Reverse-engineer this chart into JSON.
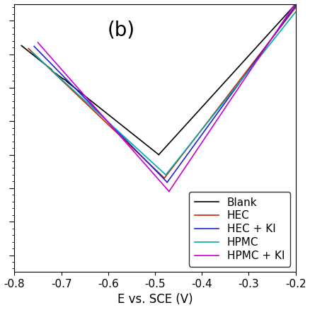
{
  "title": "(b)",
  "xlabel": "E vs. SCE (V)",
  "xlim": [
    -0.8,
    -0.2
  ],
  "xticks": [
    -0.8,
    -0.7,
    -0.6,
    -0.5,
    -0.4,
    -0.3,
    -0.2
  ],
  "colors": {
    "Blank": "#000000",
    "HEC": "#cc2200",
    "HEC + KI": "#2222cc",
    "HPMC": "#00aaaa",
    "HPMC + KI": "#cc00cc"
  },
  "title_fontsize": 20,
  "label_fontsize": 12,
  "tick_fontsize": 11,
  "legend_fontsize": 11,
  "curves": {
    "Blank": {
      "Ecorr": -0.492,
      "icorr": 1e-06,
      "ba": 0.065,
      "bc": 0.09,
      "E_cat": -0.785,
      "E_an": -0.2,
      "noise": true
    },
    "HEC": {
      "Ecorr": -0.48,
      "icorr": 2e-07,
      "ba": 0.055,
      "bc": 0.075,
      "E_cat": -0.77,
      "E_an": -0.2,
      "noise": false
    },
    "HEC + KI": {
      "Ecorr": -0.474,
      "icorr": 1.5e-07,
      "ba": 0.052,
      "bc": 0.07,
      "E_cat": -0.758,
      "E_an": -0.2,
      "noise": false
    },
    "HPMC": {
      "Ecorr": -0.477,
      "icorr": 2.5e-07,
      "ba": 0.057,
      "bc": 0.078,
      "E_cat": -0.763,
      "E_an": -0.2,
      "noise": false
    },
    "HPMC + KI": {
      "Ecorr": -0.47,
      "icorr": 8e-08,
      "ba": 0.048,
      "bc": 0.063,
      "E_cat": -0.75,
      "E_an": -0.2,
      "noise": false
    }
  },
  "ylim_log": [
    -9.5,
    -1.5
  ],
  "yticks": [
    -9,
    -8,
    -7,
    -6,
    -5,
    -4,
    -3,
    -2
  ]
}
